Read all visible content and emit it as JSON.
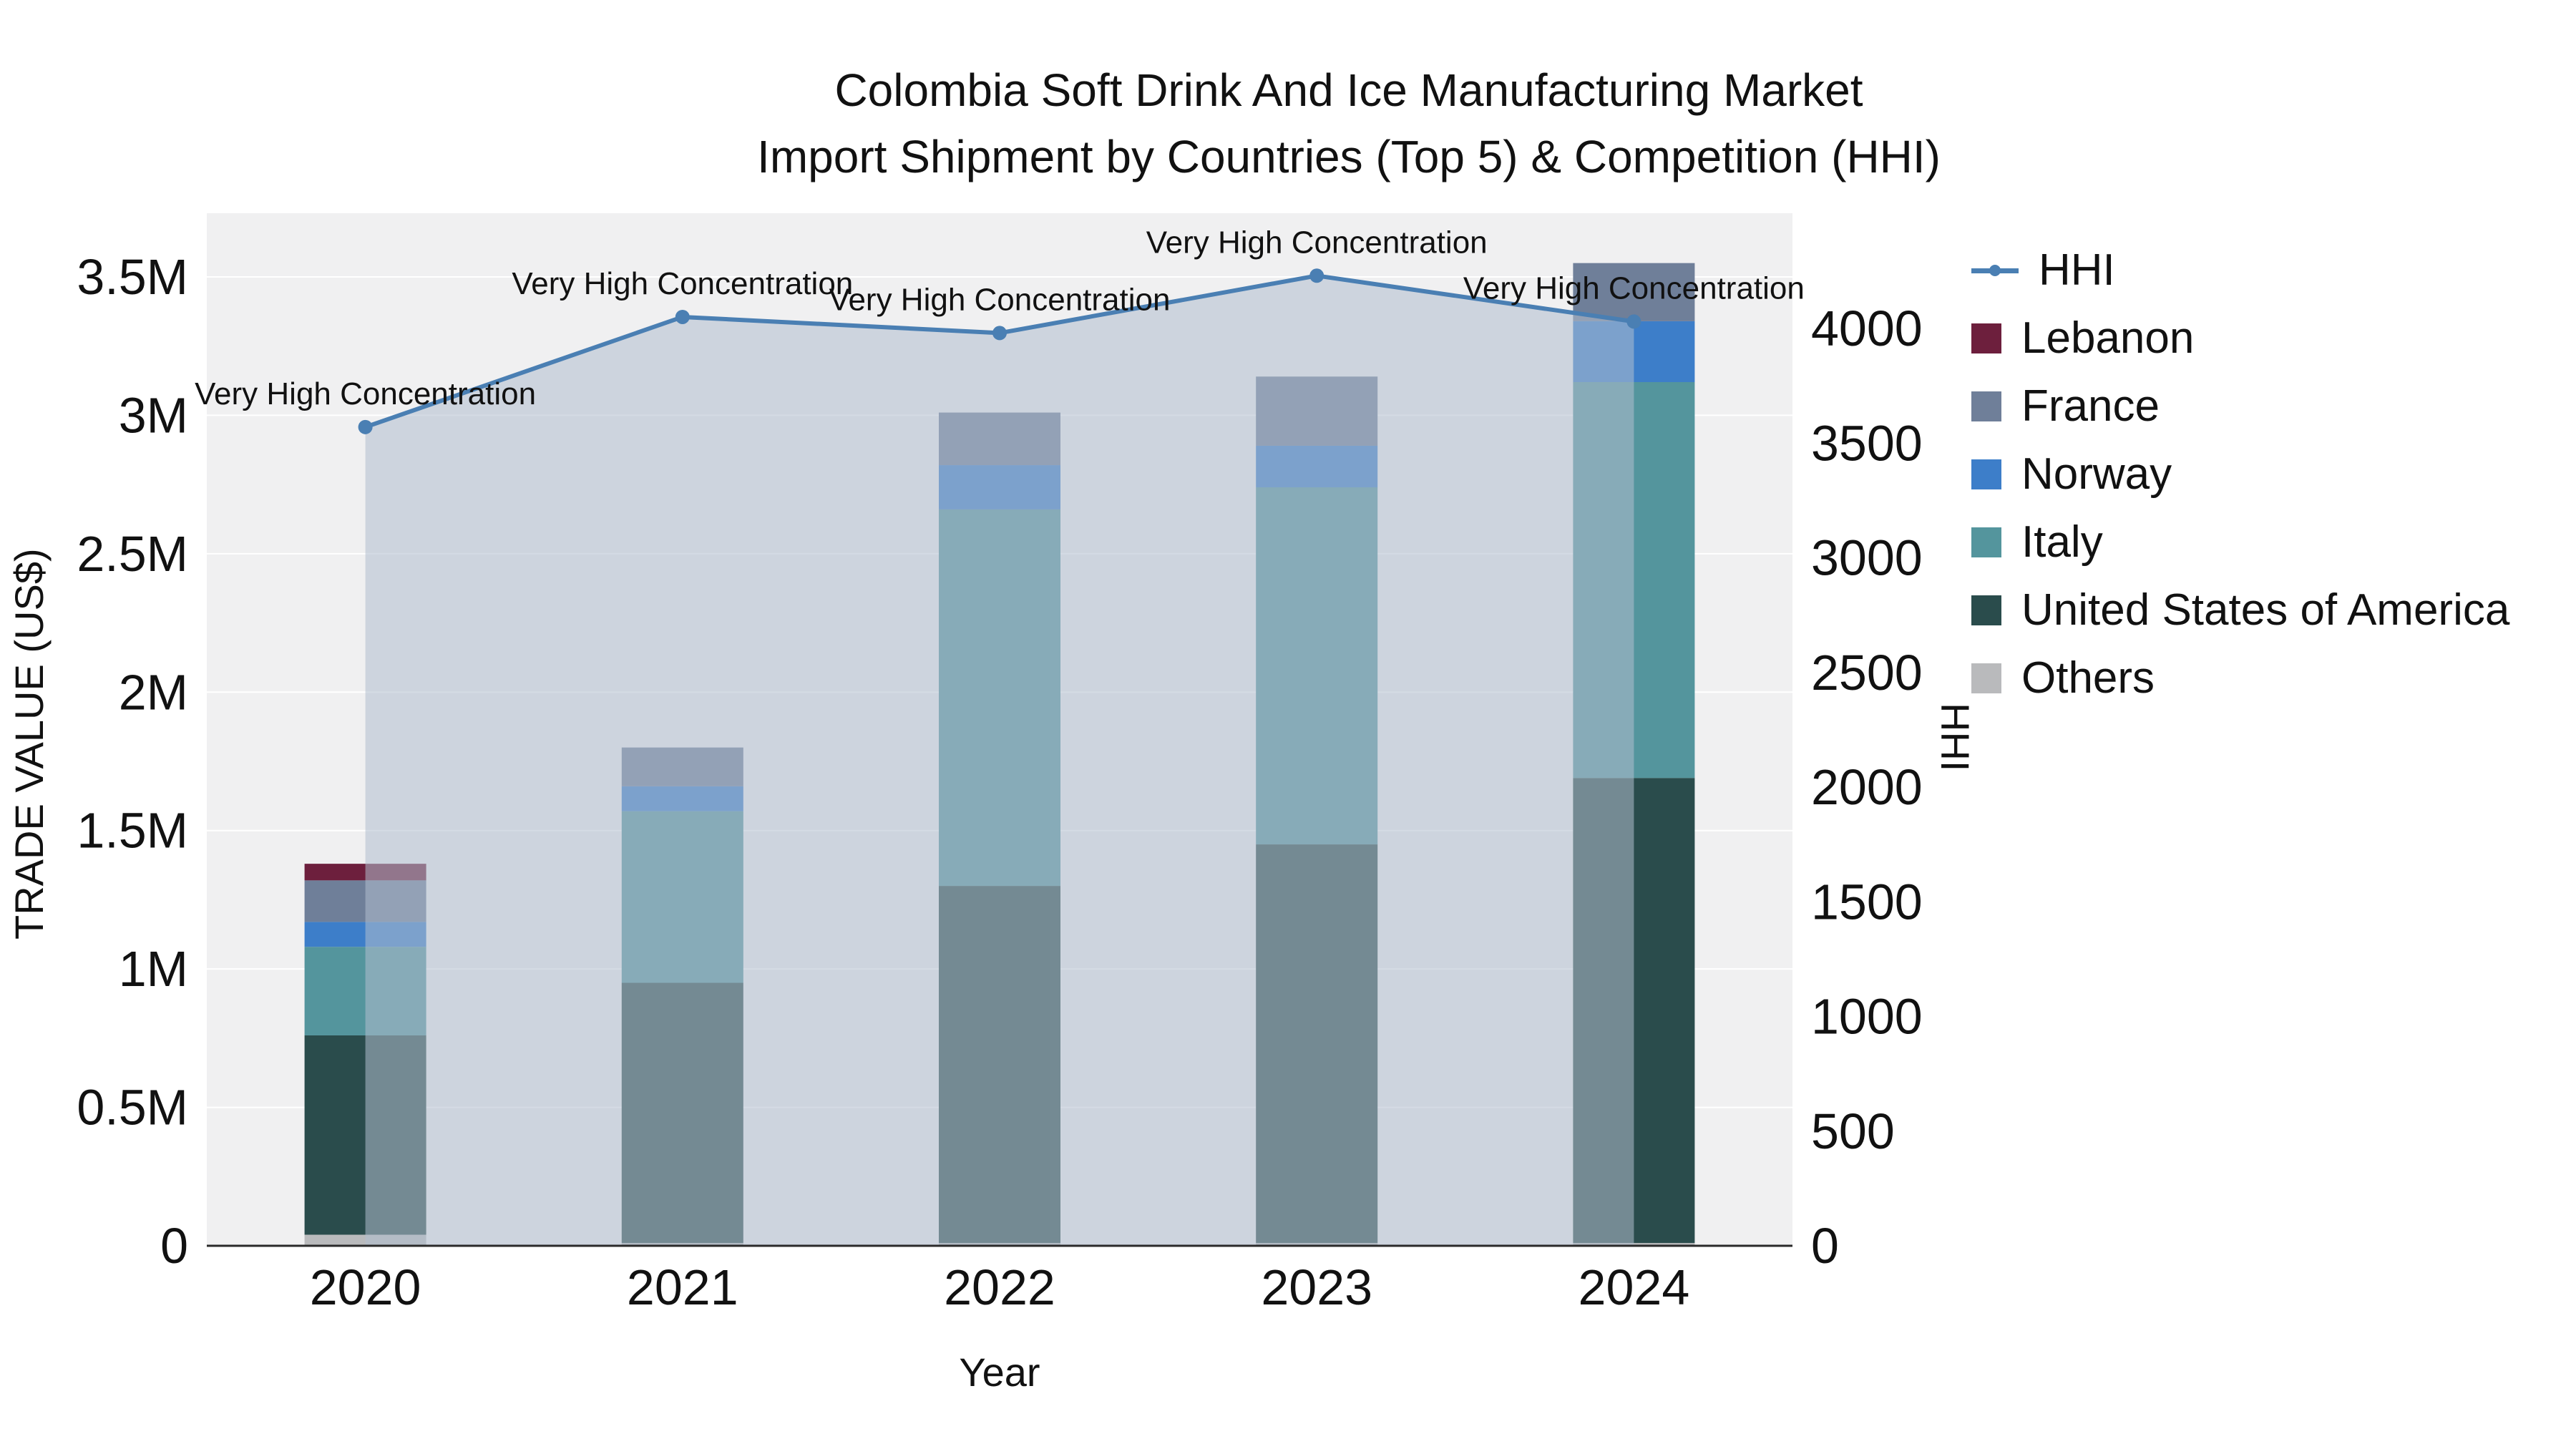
{
  "chart_data": {
    "type": "combo",
    "subtype": "stacked-bar-with-line-area",
    "title_line1": "Colombia Soft Drink And Ice Manufacturing Market",
    "title_line2": "Import Shipment by Countries (Top 5) & Competition (HHI)",
    "xlabel": "Year",
    "ylabel_left": "TRADE VALUE (US$)",
    "ylabel_right": "HHI",
    "trade_value_units": "US$ millions",
    "categories": [
      "2020",
      "2021",
      "2022",
      "2023",
      "2024"
    ],
    "bar_series": [
      {
        "name": "Others",
        "color": "#b9babc",
        "values": [
          0.04,
          0.01,
          0.01,
          0.01,
          0.01
        ]
      },
      {
        "name": "United States of America",
        "color": "#2a4c4c",
        "values": [
          0.72,
          0.94,
          1.29,
          1.44,
          1.68
        ]
      },
      {
        "name": "Italy",
        "color": "#54959d",
        "values": [
          0.32,
          0.62,
          1.36,
          1.29,
          1.43
        ]
      },
      {
        "name": "Norway",
        "color": "#3d7ec9",
        "values": [
          0.09,
          0.09,
          0.16,
          0.15,
          0.22
        ]
      },
      {
        "name": "France",
        "color": "#6f7f99",
        "values": [
          0.15,
          0.14,
          0.19,
          0.25,
          0.21
        ]
      },
      {
        "name": "Lebanon",
        "color": "#6d1f3d",
        "values": [
          0.06,
          0.0,
          0.0,
          0.0,
          0.0
        ]
      }
    ],
    "line_series": {
      "name": "HHI",
      "color": "#4a7fb3",
      "area_color": "rgba(176,190,205,0.55)",
      "values": [
        3570,
        4050,
        3980,
        4230,
        4030
      ]
    },
    "annotations": [
      "Very High Concentration",
      "Very High Concentration",
      "Very High Concentration",
      "Very High Concentration",
      "Very High Concentration"
    ],
    "y_left_ticks": [
      "0",
      "0.5M",
      "1M",
      "1.5M",
      "2M",
      "2.5M",
      "3M",
      "3.5M"
    ],
    "y_left_tick_values": [
      0,
      0.5,
      1,
      1.5,
      2,
      2.5,
      3,
      3.5
    ],
    "y_right_ticks": [
      0,
      500,
      1000,
      1500,
      2000,
      2500,
      3000,
      3500,
      4000
    ],
    "legend": [
      {
        "label": "HHI",
        "type": "line",
        "color": "#4a7fb3"
      },
      {
        "label": "Lebanon",
        "type": "square",
        "color": "#6d1f3d"
      },
      {
        "label": "France",
        "type": "square",
        "color": "#6f7f99"
      },
      {
        "label": "Norway",
        "type": "square",
        "color": "#3d7ec9"
      },
      {
        "label": "Italy",
        "type": "square",
        "color": "#54959d"
      },
      {
        "label": "United States of America",
        "type": "square",
        "color": "#2a4c4c"
      },
      {
        "label": "Others",
        "type": "square",
        "color": "#b9babc"
      }
    ],
    "layout_hints": {
      "legend_position": "right",
      "grid": "on",
      "plot_background": "#f0f0f1",
      "y_left_range": [
        0,
        3.73
      ],
      "y_right_range": [
        0,
        4500
      ]
    }
  }
}
